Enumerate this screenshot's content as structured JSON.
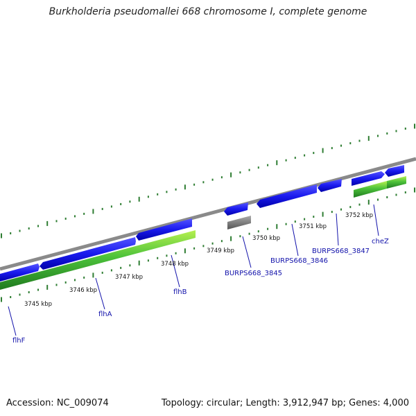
{
  "title": "Burkholderia pseudomallei 668 chromosome I, complete genome",
  "accession_label": "Accession: NC_009074",
  "summary_label": "Topology: circular; Length: 3,912,947 bp; Genes: 4,000",
  "colors": {
    "backbone": "#8a8a8a",
    "cds": "#1a1aee",
    "gene_dark": "#228b22",
    "gene_light": "#a8e03c",
    "pseudo": "#777777",
    "tick": "#2e7d32",
    "label": "#1111aa"
  },
  "kbp_labels": [
    "3745 kbp",
    "3746 kbp",
    "3747 kbp",
    "3748 kbp",
    "3749 kbp",
    "3750 kbp",
    "3751 kbp",
    "3752 kbp"
  ],
  "gene_labels": [
    "flhF",
    "flhA",
    "flhB",
    "BURPS668_3845",
    "BURPS668_3846",
    "BURPS668_3847",
    "cheZ"
  ]
}
